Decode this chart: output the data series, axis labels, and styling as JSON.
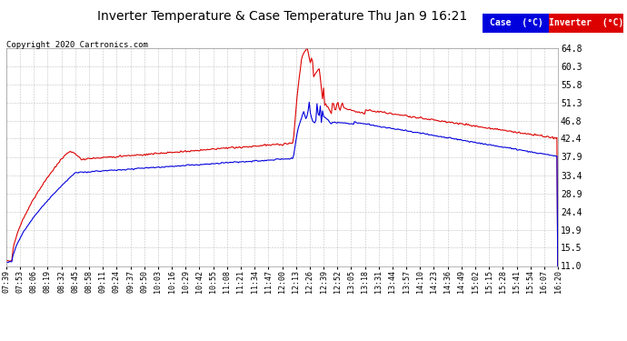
{
  "title": "Inverter Temperature & Case Temperature Thu Jan 9 16:21",
  "copyright": "Copyright 2020 Cartronics.com",
  "background_color": "#ffffff",
  "plot_bg_color": "#ffffff",
  "grid_color": "#bbbbbb",
  "ylim": [
    11.0,
    64.8
  ],
  "yticks": [
    11.0,
    15.5,
    19.9,
    24.4,
    28.9,
    33.4,
    37.9,
    42.4,
    46.8,
    51.3,
    55.8,
    60.3,
    64.8
  ],
  "case_color": "#0000dd",
  "inverter_color": "#dd0000",
  "time_labels": [
    "07:39",
    "07:53",
    "08:06",
    "08:19",
    "08:32",
    "08:45",
    "08:58",
    "09:11",
    "09:24",
    "09:37",
    "09:50",
    "10:03",
    "10:16",
    "10:29",
    "10:42",
    "10:55",
    "11:08",
    "11:21",
    "11:34",
    "11:47",
    "12:00",
    "12:13",
    "12:26",
    "12:39",
    "12:52",
    "13:05",
    "13:18",
    "13:31",
    "13:44",
    "13:57",
    "14:10",
    "14:23",
    "14:36",
    "14:49",
    "15:02",
    "15:15",
    "15:28",
    "15:41",
    "15:54",
    "16:07",
    "16:20"
  ]
}
